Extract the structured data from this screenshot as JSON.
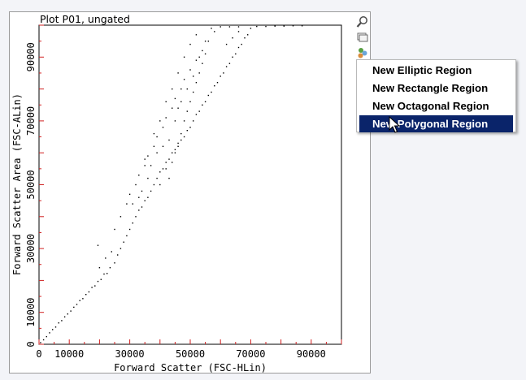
{
  "plot": {
    "title": "Plot P01, ungated",
    "x_axis_label": "Forward Scatter (FSC-HLin)",
    "y_axis_label": "Forward Scatter Area (FSC-ALin)"
  },
  "toolbar": {
    "icons": [
      "zoom-icon",
      "copy-icon",
      "gate-icon"
    ]
  },
  "context_menu": {
    "items": [
      {
        "label": "New Elliptic Region",
        "selected": false
      },
      {
        "label": "New Rectangle Region",
        "selected": false
      },
      {
        "label": "New Octagonal Region",
        "selected": false
      },
      {
        "label": "New Polygonal Region",
        "selected": true
      }
    ]
  },
  "colors": {
    "menu_highlight": "#0a246a",
    "tick_red": "#d02020"
  },
  "chart_data": {
    "type": "scatter",
    "title": "Plot P01, ungated",
    "xlabel": "Forward Scatter (FSC-HLin)",
    "ylabel": "Forward Scatter Area (FSC-ALin)",
    "xlim": [
      0,
      100000
    ],
    "ylim": [
      0,
      100000
    ],
    "x_tick_values": [
      0,
      10000,
      30000,
      50000,
      70000,
      90000
    ],
    "y_tick_values": [
      0,
      10000,
      30000,
      50000,
      70000,
      90000
    ],
    "x_tick_labels": [
      "0",
      "10000",
      "30000",
      "50000",
      "70000",
      "90000"
    ],
    "y_tick_labels": [
      "0",
      "10000",
      "30000",
      "50000",
      "70000",
      "90000"
    ],
    "grid": false,
    "series": [
      {
        "points": [
          [
            500,
            500
          ],
          [
            1500,
            1400
          ],
          [
            2500,
            2400
          ],
          [
            3500,
            3600
          ],
          [
            4500,
            4600
          ],
          [
            5500,
            5400
          ],
          [
            6500,
            6700
          ],
          [
            7500,
            7400
          ],
          [
            8500,
            8600
          ],
          [
            9500,
            9500
          ],
          [
            10500,
            10400
          ],
          [
            11500,
            11600
          ],
          [
            12500,
            12500
          ],
          [
            13500,
            13700
          ],
          [
            14500,
            14300
          ],
          [
            15500,
            15600
          ],
          [
            16500,
            16400
          ],
          [
            17500,
            17800
          ],
          [
            18500,
            18300
          ],
          [
            19500,
            19700
          ],
          [
            20500,
            20300
          ],
          [
            21500,
            22000
          ],
          [
            22500,
            22200
          ],
          [
            23500,
            24000
          ],
          [
            25000,
            25500
          ],
          [
            20000,
            24000
          ],
          [
            22000,
            27000
          ],
          [
            24000,
            29000
          ],
          [
            19500,
            31000
          ],
          [
            26000,
            28000
          ],
          [
            27000,
            30000
          ],
          [
            28000,
            32000
          ],
          [
            29000,
            34000
          ],
          [
            25000,
            36000
          ],
          [
            30000,
            36000
          ],
          [
            31000,
            38000
          ],
          [
            27000,
            40000
          ],
          [
            32000,
            40000
          ],
          [
            33000,
            42000
          ],
          [
            29000,
            44000
          ],
          [
            34000,
            43000
          ],
          [
            35000,
            45000
          ],
          [
            30000,
            47000
          ],
          [
            36000,
            46000
          ],
          [
            37000,
            48000
          ],
          [
            32000,
            50000
          ],
          [
            38000,
            50000
          ],
          [
            39000,
            52000
          ],
          [
            33000,
            53000
          ],
          [
            40000,
            54000
          ],
          [
            41000,
            55000
          ],
          [
            35000,
            56000
          ],
          [
            42000,
            57000
          ],
          [
            43000,
            58000
          ],
          [
            36000,
            59000
          ],
          [
            44000,
            60000
          ],
          [
            45000,
            61000
          ],
          [
            38000,
            62000
          ],
          [
            46000,
            62000
          ],
          [
            47000,
            64000
          ],
          [
            39000,
            65000
          ],
          [
            48000,
            65000
          ],
          [
            49000,
            67000
          ],
          [
            41000,
            68000
          ],
          [
            50000,
            68000
          ],
          [
            51000,
            70000
          ],
          [
            42000,
            71000
          ],
          [
            52000,
            72000
          ],
          [
            53000,
            73000
          ],
          [
            44000,
            74000
          ],
          [
            54000,
            75000
          ],
          [
            55000,
            76000
          ],
          [
            45000,
            77000
          ],
          [
            56000,
            78000
          ],
          [
            57000,
            79000
          ],
          [
            47000,
            80000
          ],
          [
            58000,
            81000
          ],
          [
            59000,
            82000
          ],
          [
            48000,
            83000
          ],
          [
            60000,
            84000
          ],
          [
            61000,
            85000
          ],
          [
            50000,
            86000
          ],
          [
            62000,
            87000
          ],
          [
            63000,
            88000
          ],
          [
            52000,
            89000
          ],
          [
            64000,
            90000
          ],
          [
            65000,
            91000
          ],
          [
            54000,
            92000
          ],
          [
            66000,
            93000
          ],
          [
            67000,
            94000
          ],
          [
            56000,
            95000
          ],
          [
            68000,
            96000
          ],
          [
            69000,
            97000
          ],
          [
            58000,
            98000
          ],
          [
            70000,
            99000
          ],
          [
            45000,
            60000
          ],
          [
            44000,
            57000
          ],
          [
            46000,
            63000
          ],
          [
            43000,
            52000
          ],
          [
            47000,
            66000
          ],
          [
            48000,
            70000
          ],
          [
            42000,
            55000
          ],
          [
            49000,
            73000
          ],
          [
            50000,
            76000
          ],
          [
            51000,
            79000
          ],
          [
            52000,
            82000
          ],
          [
            53000,
            85000
          ],
          [
            54000,
            88000
          ],
          [
            55000,
            91000
          ],
          [
            40000,
            50000
          ],
          [
            41000,
            62000
          ],
          [
            43000,
            64000
          ],
          [
            45000,
            70000
          ],
          [
            46000,
            74000
          ],
          [
            47000,
            76000
          ],
          [
            49000,
            80000
          ],
          [
            51000,
            84000
          ],
          [
            53000,
            90000
          ],
          [
            55000,
            95000
          ],
          [
            57000,
            99000
          ],
          [
            60000,
            99500
          ],
          [
            63000,
            99500
          ],
          [
            66000,
            99500
          ],
          [
            72000,
            99600
          ],
          [
            75000,
            99600
          ],
          [
            78000,
            99700
          ],
          [
            81000,
            99700
          ],
          [
            84000,
            99800
          ],
          [
            87000,
            99800
          ],
          [
            62000,
            94000
          ],
          [
            64000,
            96000
          ],
          [
            66000,
            98000
          ],
          [
            37000,
            56000
          ],
          [
            39000,
            60000
          ],
          [
            36000,
            52000
          ],
          [
            35000,
            58000
          ],
          [
            38000,
            66000
          ],
          [
            40000,
            70000
          ],
          [
            42000,
            76000
          ],
          [
            44000,
            80000
          ],
          [
            46000,
            85000
          ],
          [
            48000,
            90000
          ],
          [
            50000,
            94000
          ],
          [
            52000,
            97000
          ],
          [
            34000,
            48000
          ],
          [
            33000,
            46000
          ],
          [
            31000,
            44000
          ]
        ]
      }
    ]
  }
}
